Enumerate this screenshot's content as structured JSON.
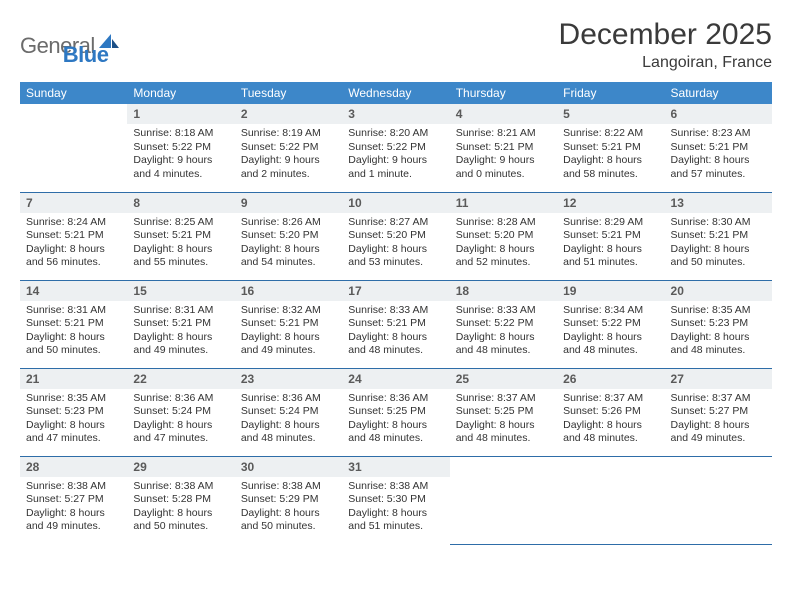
{
  "brand": {
    "gray": "General",
    "blue": "Blue"
  },
  "title": "December 2025",
  "location": "Langoiran, France",
  "colors": {
    "header_bg": "#3d87c9",
    "header_text": "#ffffff",
    "daynum_bg": "#edf0f2",
    "daynum_text": "#5a5a5a",
    "row_border": "#2e6da8",
    "logo_gray": "#6b6b6b",
    "logo_blue": "#2e78c2"
  },
  "weekdays": [
    "Sunday",
    "Monday",
    "Tuesday",
    "Wednesday",
    "Thursday",
    "Friday",
    "Saturday"
  ],
  "weeks": [
    [
      null,
      {
        "n": "1",
        "sr": "8:18 AM",
        "ss": "5:22 PM",
        "dl": "9 hours and 4 minutes."
      },
      {
        "n": "2",
        "sr": "8:19 AM",
        "ss": "5:22 PM",
        "dl": "9 hours and 2 minutes."
      },
      {
        "n": "3",
        "sr": "8:20 AM",
        "ss": "5:22 PM",
        "dl": "9 hours and 1 minute."
      },
      {
        "n": "4",
        "sr": "8:21 AM",
        "ss": "5:21 PM",
        "dl": "9 hours and 0 minutes."
      },
      {
        "n": "5",
        "sr": "8:22 AM",
        "ss": "5:21 PM",
        "dl": "8 hours and 58 minutes."
      },
      {
        "n": "6",
        "sr": "8:23 AM",
        "ss": "5:21 PM",
        "dl": "8 hours and 57 minutes."
      }
    ],
    [
      {
        "n": "7",
        "sr": "8:24 AM",
        "ss": "5:21 PM",
        "dl": "8 hours and 56 minutes."
      },
      {
        "n": "8",
        "sr": "8:25 AM",
        "ss": "5:21 PM",
        "dl": "8 hours and 55 minutes."
      },
      {
        "n": "9",
        "sr": "8:26 AM",
        "ss": "5:20 PM",
        "dl": "8 hours and 54 minutes."
      },
      {
        "n": "10",
        "sr": "8:27 AM",
        "ss": "5:20 PM",
        "dl": "8 hours and 53 minutes."
      },
      {
        "n": "11",
        "sr": "8:28 AM",
        "ss": "5:20 PM",
        "dl": "8 hours and 52 minutes."
      },
      {
        "n": "12",
        "sr": "8:29 AM",
        "ss": "5:21 PM",
        "dl": "8 hours and 51 minutes."
      },
      {
        "n": "13",
        "sr": "8:30 AM",
        "ss": "5:21 PM",
        "dl": "8 hours and 50 minutes."
      }
    ],
    [
      {
        "n": "14",
        "sr": "8:31 AM",
        "ss": "5:21 PM",
        "dl": "8 hours and 50 minutes."
      },
      {
        "n": "15",
        "sr": "8:31 AM",
        "ss": "5:21 PM",
        "dl": "8 hours and 49 minutes."
      },
      {
        "n": "16",
        "sr": "8:32 AM",
        "ss": "5:21 PM",
        "dl": "8 hours and 49 minutes."
      },
      {
        "n": "17",
        "sr": "8:33 AM",
        "ss": "5:21 PM",
        "dl": "8 hours and 48 minutes."
      },
      {
        "n": "18",
        "sr": "8:33 AM",
        "ss": "5:22 PM",
        "dl": "8 hours and 48 minutes."
      },
      {
        "n": "19",
        "sr": "8:34 AM",
        "ss": "5:22 PM",
        "dl": "8 hours and 48 minutes."
      },
      {
        "n": "20",
        "sr": "8:35 AM",
        "ss": "5:23 PM",
        "dl": "8 hours and 48 minutes."
      }
    ],
    [
      {
        "n": "21",
        "sr": "8:35 AM",
        "ss": "5:23 PM",
        "dl": "8 hours and 47 minutes."
      },
      {
        "n": "22",
        "sr": "8:36 AM",
        "ss": "5:24 PM",
        "dl": "8 hours and 47 minutes."
      },
      {
        "n": "23",
        "sr": "8:36 AM",
        "ss": "5:24 PM",
        "dl": "8 hours and 48 minutes."
      },
      {
        "n": "24",
        "sr": "8:36 AM",
        "ss": "5:25 PM",
        "dl": "8 hours and 48 minutes."
      },
      {
        "n": "25",
        "sr": "8:37 AM",
        "ss": "5:25 PM",
        "dl": "8 hours and 48 minutes."
      },
      {
        "n": "26",
        "sr": "8:37 AM",
        "ss": "5:26 PM",
        "dl": "8 hours and 48 minutes."
      },
      {
        "n": "27",
        "sr": "8:37 AM",
        "ss": "5:27 PM",
        "dl": "8 hours and 49 minutes."
      }
    ],
    [
      {
        "n": "28",
        "sr": "8:38 AM",
        "ss": "5:27 PM",
        "dl": "8 hours and 49 minutes."
      },
      {
        "n": "29",
        "sr": "8:38 AM",
        "ss": "5:28 PM",
        "dl": "8 hours and 50 minutes."
      },
      {
        "n": "30",
        "sr": "8:38 AM",
        "ss": "5:29 PM",
        "dl": "8 hours and 50 minutes."
      },
      {
        "n": "31",
        "sr": "8:38 AM",
        "ss": "5:30 PM",
        "dl": "8 hours and 51 minutes."
      },
      null,
      null,
      null
    ]
  ],
  "labels": {
    "sunrise": "Sunrise: ",
    "sunset": "Sunset: ",
    "daylight": "Daylight: "
  }
}
